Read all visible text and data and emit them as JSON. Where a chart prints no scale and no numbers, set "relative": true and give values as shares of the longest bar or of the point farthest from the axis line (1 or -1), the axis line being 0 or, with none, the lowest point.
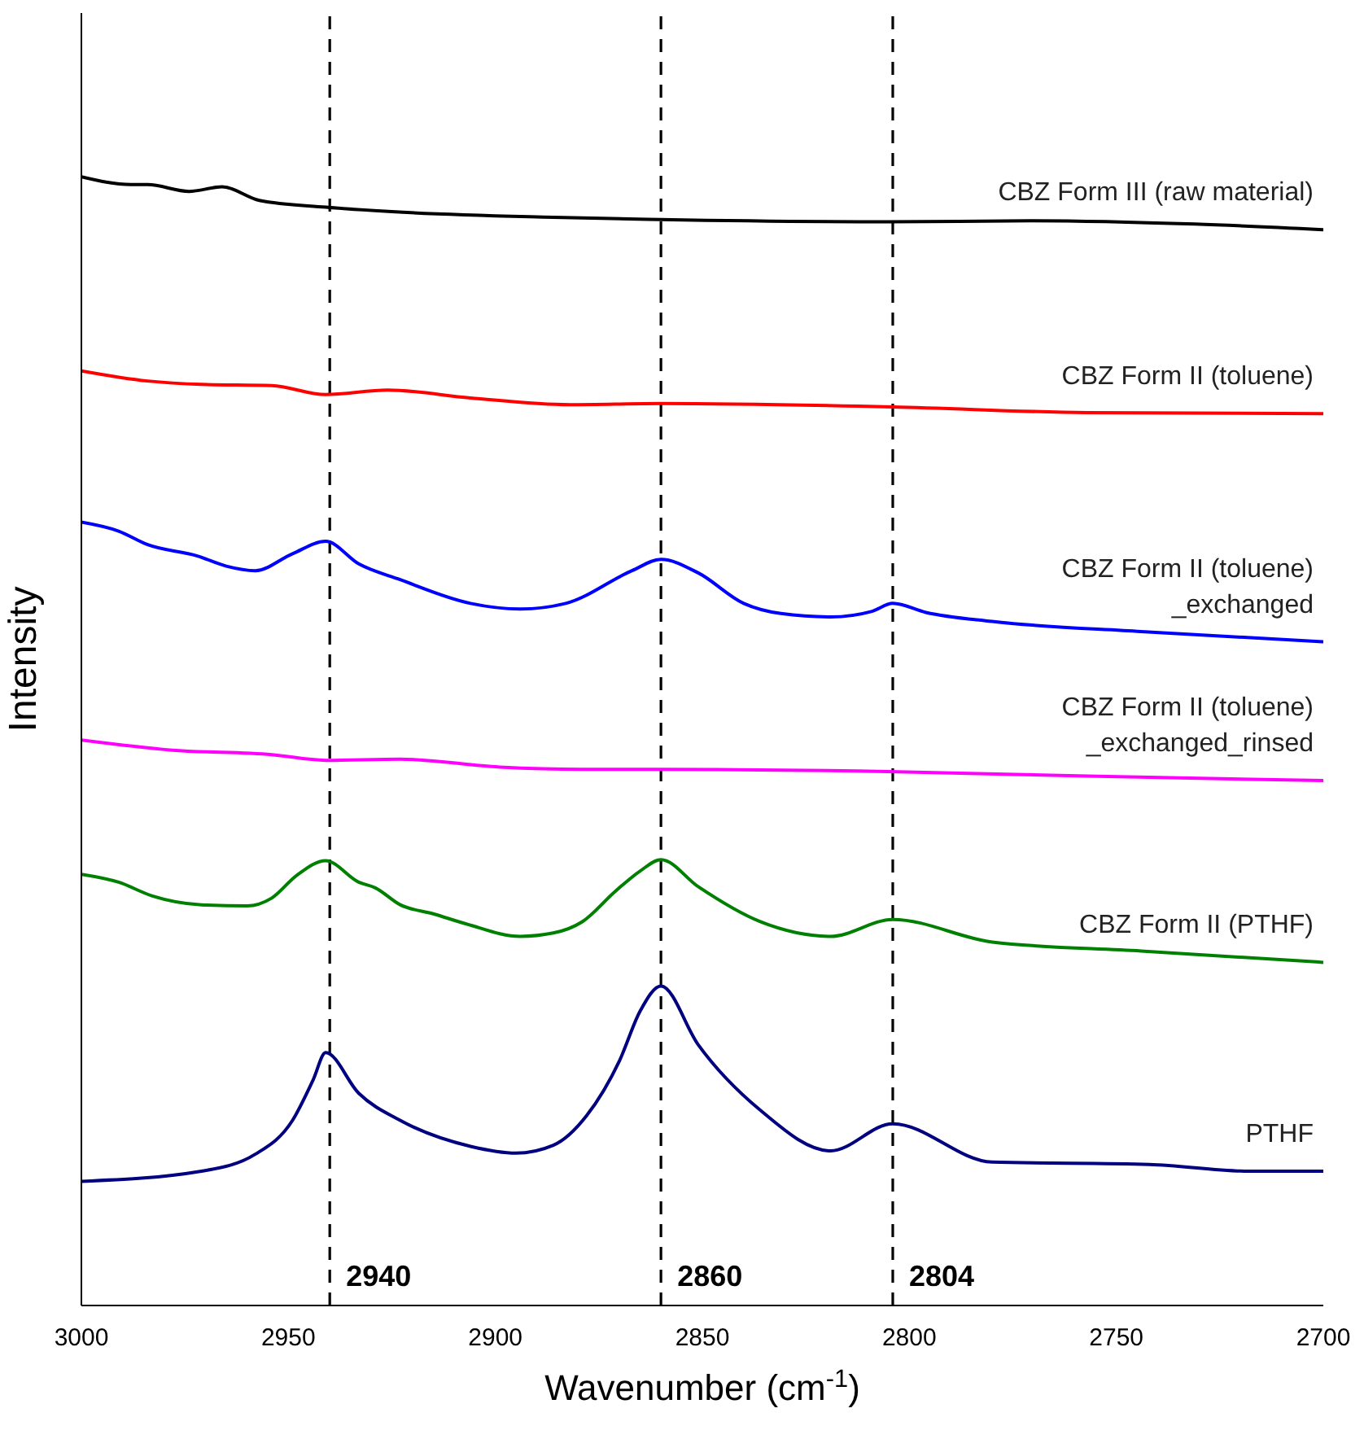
{
  "chart_data": {
    "type": "line",
    "relative": true,
    "xlabel": "Wavenumber (cm$^{-1}$)",
    "ylabel": "Intensity",
    "xlim": [
      3000,
      2700
    ],
    "xticks": [
      3000,
      2950,
      2900,
      2850,
      2800,
      2750,
      2700
    ],
    "marker": "none",
    "line_style": "solid",
    "series": [
      {
        "name": "CBZ Form III (raw material)",
        "color": "#000000",
        "x": [
          3000,
          2988,
          2984,
          2974,
          2966,
          2957,
          2941,
          2925,
          2886,
          2860,
          2805,
          2771,
          2731,
          2700
        ],
        "values": [
          1.0,
          0.993,
          0.993,
          0.987,
          0.991,
          0.979,
          0.973,
          0.969,
          0.964,
          0.962,
          0.96,
          0.961,
          0.958,
          0.953
        ]
      },
      {
        "name": "CBZ Form II (toluene)",
        "color": "#ff0000",
        "x": [
          3000,
          2984,
          2971,
          2954,
          2941,
          2926,
          2906,
          2882,
          2860,
          2804,
          2757,
          2700
        ],
        "values": [
          0.828,
          0.819,
          0.816,
          0.815,
          0.807,
          0.811,
          0.804,
          0.798,
          0.799,
          0.796,
          0.791,
          0.79
        ]
      },
      {
        "name": "CBZ Form II (toluene)\n_exchanged",
        "color": "#0000ff",
        "x": [
          3000,
          2991,
          2984,
          2972,
          2965,
          2958,
          2949,
          2941,
          2933,
          2923,
          2906,
          2894,
          2883,
          2867,
          2860,
          2851,
          2840,
          2831,
          2819,
          2809,
          2804,
          2796,
          2780,
          2744,
          2700
        ],
        "values": [
          0.694,
          0.686,
          0.674,
          0.664,
          0.655,
          0.651,
          0.666,
          0.677,
          0.657,
          0.643,
          0.622,
          0.617,
          0.622,
          0.651,
          0.661,
          0.649,
          0.622,
          0.613,
          0.61,
          0.615,
          0.622,
          0.614,
          0.606,
          0.597,
          0.588
        ]
      },
      {
        "name": "CBZ Form II (toluene)\n_exchanged_rinsed",
        "color": "#ff00ff",
        "x": [
          3000,
          2978,
          2954,
          2941,
          2923,
          2899,
          2879,
          2860,
          2805,
          2757,
          2700
        ],
        "values": [
          0.501,
          0.492,
          0.488,
          0.483,
          0.484,
          0.477,
          0.475,
          0.475,
          0.473,
          0.469,
          0.465
        ]
      },
      {
        "name": "CBZ Form II (PTHF)",
        "color": "#008000",
        "x": [
          3000,
          2991,
          2983,
          2971,
          2960,
          2954,
          2948,
          2941,
          2933,
          2929,
          2923,
          2915,
          2907,
          2894,
          2886,
          2879,
          2871,
          2865,
          2860,
          2851,
          2836,
          2819,
          2804,
          2780,
          2744,
          2700
        ],
        "values": [
          0.382,
          0.375,
          0.363,
          0.355,
          0.354,
          0.361,
          0.381,
          0.394,
          0.375,
          0.37,
          0.355,
          0.347,
          0.338,
          0.327,
          0.33,
          0.34,
          0.367,
          0.385,
          0.395,
          0.371,
          0.34,
          0.327,
          0.342,
          0.322,
          0.314,
          0.304
        ]
      },
      {
        "name": "PTHF",
        "color": "#000080",
        "x": [
          3000,
          2971,
          2958,
          2949,
          2944,
          2941,
          2933,
          2923,
          2906,
          2895,
          2886,
          2878,
          2870,
          2865,
          2860,
          2851,
          2836,
          2819,
          2804,
          2780,
          2742,
          2718,
          2700
        ],
        "values": [
          0.11,
          0.119,
          0.134,
          0.164,
          0.2,
          0.224,
          0.188,
          0.164,
          0.141,
          0.135,
          0.142,
          0.168,
          0.217,
          0.261,
          0.283,
          0.231,
          0.173,
          0.137,
          0.161,
          0.127,
          0.125,
          0.119,
          0.119
        ]
      }
    ],
    "ref_lines": [
      {
        "axis": "x",
        "value": 2940,
        "label": "2940",
        "color": "#000000",
        "line_style": "dashed"
      },
      {
        "axis": "x",
        "value": 2860,
        "label": "2860",
        "color": "#000000",
        "line_style": "dashed"
      },
      {
        "axis": "x",
        "value": 2804,
        "label": "2804",
        "color": "#000000",
        "line_style": "dashed"
      }
    ]
  }
}
